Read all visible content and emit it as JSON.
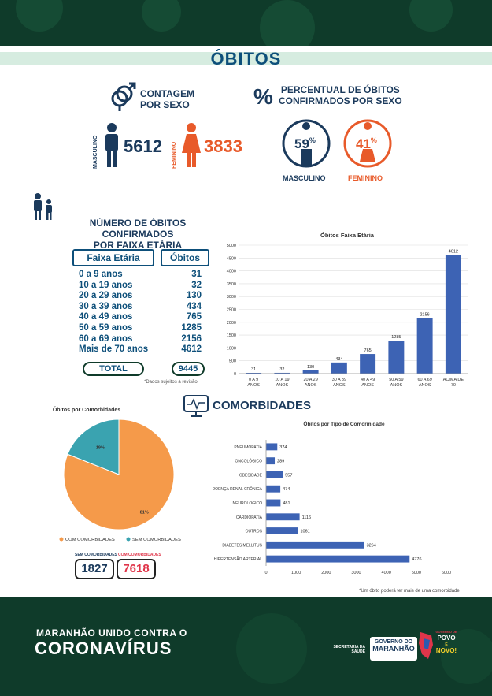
{
  "title": "ÓBITOS",
  "sex_count": {
    "header": [
      "CONTAGEM",
      "POR SEXO"
    ],
    "male_label": "MASCULINO",
    "male_value": "5612",
    "female_label": "FEMININO",
    "female_value": "3833"
  },
  "sex_percent": {
    "header": [
      "PERCENTUAL DE ÓBITOS",
      "CONFIRMADOS POR SEXO"
    ],
    "percent_symbol": "%",
    "male_value": "59",
    "male_label": "MASCULINO",
    "female_value": "41",
    "female_label": "FEMININO"
  },
  "age": {
    "header": [
      "NÚMERO DE ÓBITOS CONFIRMADOS",
      "POR FAIXA ETÁRIA"
    ],
    "col_range": "Faixa Etária",
    "col_deaths": "Óbitos",
    "rows": [
      {
        "range": "0 a 9 anos",
        "value": "31"
      },
      {
        "range": "10 a 19 anos",
        "value": "32"
      },
      {
        "range": "20 a 29 anos",
        "value": "130"
      },
      {
        "range": "30 a 39 anos",
        "value": "434"
      },
      {
        "range": "40 a 49 anos",
        "value": "765"
      },
      {
        "range": "50 a 59 anos",
        "value": "1285"
      },
      {
        "range": "60 a 69 anos",
        "value": "2156"
      },
      {
        "range": "Mais de 70 anos",
        "value": "4612"
      }
    ],
    "total_label": "TOTAL",
    "total_value": "9445",
    "note": "*Dados sujeitos à revisão"
  },
  "comorb": {
    "header": "COMORBIDADES",
    "with_label": "COM COMORBIDADES",
    "without_label": "SEM COMORBIDADES",
    "with_value": "7618",
    "without_value": "1827",
    "note": "*Um óbito poderá ter mais de uma comorbidade"
  },
  "footer": {
    "line1": "MARANHÃO UNIDO CONTRA O",
    "line2": "CORONAVÍRUS",
    "secretaria": [
      "SECRETARIA DA",
      "SAÚDE"
    ],
    "gov_line1": "GOVERNO DO",
    "gov_line2": "MARANHÃO",
    "slogan": [
      "GOVERNO DE",
      "POVO",
      "E",
      "NOVO!"
    ]
  },
  "colors": {
    "dark_green": "#0f3b2a",
    "navy": "#1b3a5c",
    "orange": "#e85a2a",
    "bar_blue": "#3d63b4",
    "pie_orange": "#f59a4a",
    "pie_teal": "#3aa3b0"
  },
  "chart_data": [
    {
      "type": "bar",
      "title": "Óbitos Faixa Etária",
      "categories": [
        "0 A 9 ANOS",
        "10 A 19 ANOS",
        "20 A 29 ANOS",
        "30 A 39 ANOS",
        "40 A 49 ANOS",
        "50 A 59 ANOS",
        "60 A 69 ANOS",
        "ACIMA DE 70"
      ],
      "values": [
        31,
        32,
        130,
        434,
        765,
        1285,
        2156,
        4612
      ],
      "ylim": [
        0,
        5000
      ],
      "yticks": [
        0,
        500,
        1000,
        1500,
        2000,
        2500,
        3000,
        3500,
        4000,
        4500,
        5000
      ],
      "grid": true
    },
    {
      "type": "pie",
      "title": "Óbitos por Comorbidades",
      "labels": [
        "COM COMORBIDADES",
        "SEM COMORBIDADES"
      ],
      "values": [
        81,
        19
      ],
      "value_labels": [
        "81%",
        "19%"
      ],
      "legend": "bottom"
    },
    {
      "type": "bar",
      "orientation": "horizontal",
      "title": "Óbitos por Tipo de Comormidade",
      "categories": [
        "PNEUMOPATIA",
        "ONCOLÓGICO",
        "OBESIDADE",
        "DOENÇA RENAL CRÔNICA",
        "NEUROLÓGICO",
        "CARDIOPATIA",
        "OUTROS",
        "DIABETES MELLITUS",
        "HIPERTENSÃO ARTERIAL"
      ],
      "values": [
        374,
        289,
        557,
        474,
        481,
        1116,
        1061,
        3264,
        4776
      ],
      "xlim": [
        0,
        6000
      ],
      "xticks": [
        0,
        1000,
        2000,
        3000,
        4000,
        5000,
        6000
      ]
    }
  ]
}
